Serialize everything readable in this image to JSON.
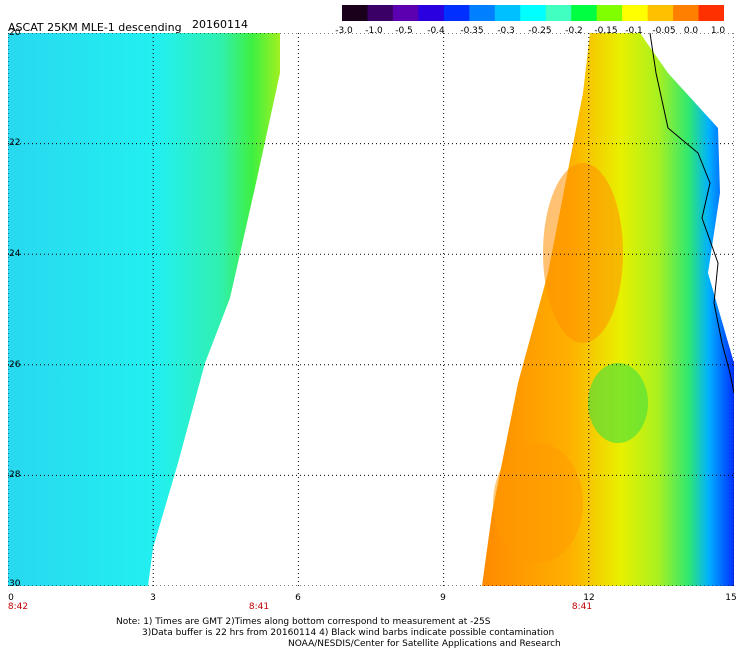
{
  "header": {
    "title": "ASCAT 25KM MLE-1 descending",
    "date": "20160114"
  },
  "colorbar": {
    "labels": [
      "-3.0",
      "-1.0",
      "-0.5",
      "-0.4",
      "-0.35",
      "-0.3",
      "-0.25",
      "-0.2",
      "-0.15",
      "-0.1",
      "-0.05",
      "0.0",
      "1.0"
    ],
    "colors": [
      "#1a001a",
      "#3b0066",
      "#5a00b0",
      "#2a00e0",
      "#0030ff",
      "#0080ff",
      "#00c0ff",
      "#00ffff",
      "#40ffc0",
      "#00ff40",
      "#80ff00",
      "#ffff00",
      "#ffc000",
      "#ff8000",
      "#ff3000"
    ]
  },
  "axes": {
    "y_labels": [
      "20",
      "22",
      "24",
      "26",
      "28",
      "30"
    ],
    "x_labels": [
      "0",
      "3",
      "6",
      "9",
      "12",
      "15"
    ],
    "orbit_times": [
      "8:42",
      "8:41",
      "8:41"
    ]
  },
  "notes": {
    "line1": "Note: 1) Times are GMT 2)Times along bottom correspond to measurement at -25S",
    "line2": "3)Data buffer is 22 hrs from 20160114 4) Black wind barbs indicate possible contamination",
    "line3": "NOAA/NESDIS/Center for Satellite Applications and Research"
  }
}
